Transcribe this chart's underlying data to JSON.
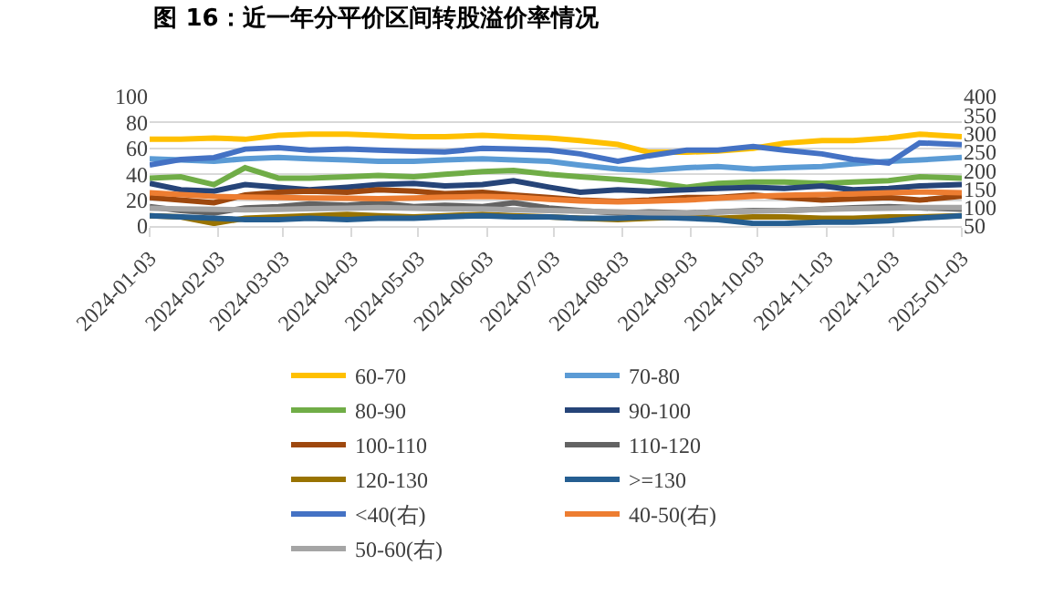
{
  "chart_data": {
    "type": "line",
    "title": "图 16：近一年分平价区间转股溢价率情况",
    "x": [
      "2024-01-03",
      "2024-01-17",
      "2024-02-01",
      "2024-02-15",
      "2024-03-01",
      "2024-03-15",
      "2024-04-01",
      "2024-04-15",
      "2024-05-01",
      "2024-05-15",
      "2024-06-01",
      "2024-06-15",
      "2024-07-01",
      "2024-07-15",
      "2024-08-01",
      "2024-08-15",
      "2024-09-01",
      "2024-09-15",
      "2024-10-01",
      "2024-10-15",
      "2024-11-01",
      "2024-11-15",
      "2024-12-01",
      "2024-12-15",
      "2025-01-03"
    ],
    "series": [
      {
        "name": "60-70",
        "color": "#ffc000",
        "values": [
          67,
          67,
          68,
          67,
          70,
          71,
          71,
          70,
          69,
          69,
          70,
          69,
          68,
          66,
          63,
          57,
          57,
          58,
          60,
          64,
          66,
          66,
          68,
          71,
          69
        ]
      },
      {
        "name": "70-80",
        "color": "#5b9bd5",
        "values": [
          52,
          51,
          50,
          52,
          53,
          52,
          51,
          50,
          50,
          51,
          52,
          51,
          50,
          47,
          44,
          43,
          45,
          46,
          44,
          45,
          46,
          48,
          50,
          51,
          53
        ]
      },
      {
        "name": "80-90",
        "color": "#70ad47",
        "values": [
          37,
          38,
          32,
          45,
          37,
          37,
          38,
          39,
          38,
          40,
          42,
          43,
          40,
          38,
          36,
          34,
          30,
          33,
          34,
          34,
          33,
          34,
          35,
          38,
          37
        ]
      },
      {
        "name": "90-100",
        "color": "#264478",
        "values": [
          33,
          28,
          27,
          32,
          30,
          28,
          30,
          32,
          33,
          31,
          32,
          35,
          30,
          26,
          28,
          27,
          28,
          29,
          30,
          29,
          31,
          28,
          29,
          31,
          32
        ]
      },
      {
        "name": "100-110",
        "color": "#9e480e",
        "values": [
          22,
          20,
          18,
          24,
          26,
          27,
          26,
          28,
          27,
          25,
          26,
          24,
          22,
          20,
          19,
          20,
          22,
          22,
          24,
          22,
          20,
          21,
          22,
          20,
          23
        ]
      },
      {
        "name": "110-120",
        "color": "#636363",
        "values": [
          15,
          12,
          10,
          14,
          15,
          17,
          16,
          18,
          15,
          16,
          15,
          18,
          14,
          12,
          10,
          11,
          10,
          11,
          12,
          12,
          13,
          14,
          15,
          14,
          13
        ]
      },
      {
        "name": "120-130",
        "color": "#997300",
        "values": [
          8,
          7,
          2,
          6,
          7,
          8,
          9,
          8,
          7,
          8,
          9,
          8,
          7,
          6,
          5,
          6,
          7,
          6,
          7,
          7,
          6,
          6,
          7,
          7,
          8
        ]
      },
      {
        "name": ">=130",
        "color": "#255e91",
        "values": [
          8,
          7,
          6,
          5,
          5,
          6,
          5,
          6,
          6,
          7,
          8,
          7,
          7,
          6,
          6,
          7,
          6,
          5,
          2,
          2,
          3,
          3,
          4,
          6,
          8
        ]
      },
      {
        "name": "<40(右)",
        "color": "#4472c4",
        "axis": "y2",
        "values": [
          215,
          230,
          235,
          258,
          262,
          255,
          258,
          255,
          252,
          250,
          260,
          258,
          255,
          245,
          225,
          240,
          255,
          255,
          265,
          255,
          245,
          230,
          220,
          275,
          270
        ]
      },
      {
        "name": "40-50(右)",
        "color": "#ed7d31",
        "axis": "y2",
        "values": [
          140,
          135,
          130,
          128,
          127,
          126,
          125,
          124,
          126,
          128,
          130,
          128,
          122,
          118,
          115,
          117,
          120,
          125,
          130,
          133,
          135,
          137,
          140,
          142,
          140
        ]
      },
      {
        "name": "50-60(右)",
        "color": "#a5a5a5",
        "axis": "y2",
        "values": [
          98,
          96,
          95,
          94,
          95,
          97,
          98,
          100,
          98,
          96,
          96,
          94,
          92,
          90,
          88,
          86,
          85,
          88,
          90,
          92,
          95,
          97,
          98,
          100,
          100
        ]
      }
    ],
    "xlim": [
      "2024-01-03",
      "2025-01-03"
    ],
    "xticks": [
      "2024-01-03",
      "2024-02-03",
      "2024-03-03",
      "2024-04-03",
      "2024-05-03",
      "2024-06-03",
      "2024-07-03",
      "2024-08-03",
      "2024-09-03",
      "2024-10-03",
      "2024-11-03",
      "2024-12-03",
      "2025-01-03"
    ],
    "ylim": [
      0,
      100
    ],
    "yticks": [
      0,
      20,
      40,
      60,
      80,
      100
    ],
    "y2lim": [
      50,
      400
    ],
    "y2ticks": [
      50,
      100,
      150,
      200,
      250,
      300,
      350,
      400
    ],
    "grid": "y",
    "legend": "bottom",
    "marker": "none",
    "line_style": "solid"
  }
}
